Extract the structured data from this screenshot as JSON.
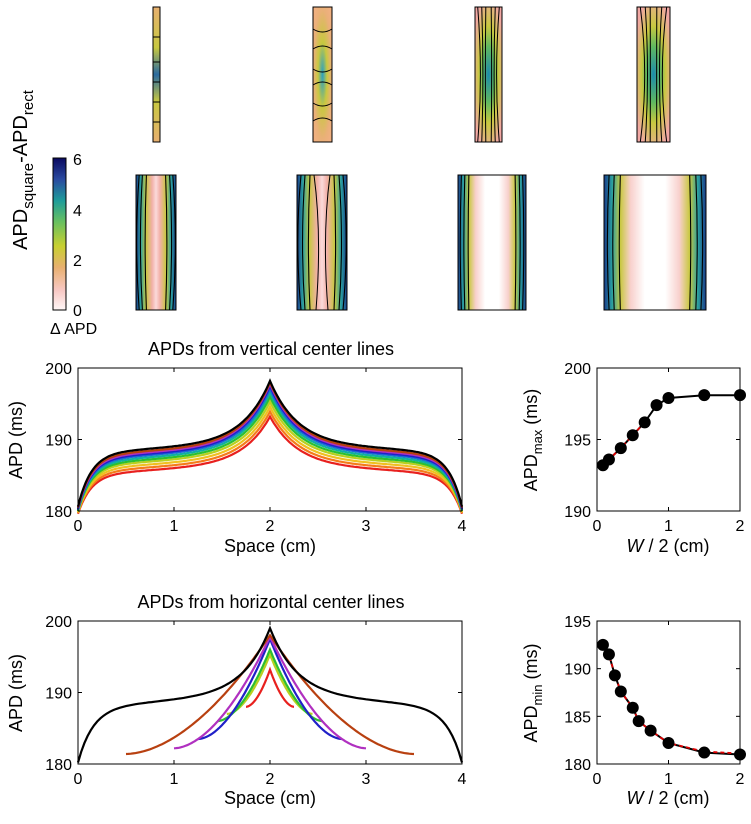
{
  "colors": {
    "colormap": [
      "#fff7f7",
      "#f4a7a4",
      "#e0c060",
      "#c8d030",
      "#1e9c9a",
      "#2a4aa0",
      "#0a0a60"
    ],
    "series": [
      "#e8201e",
      "#f47c1a",
      "#f0c020",
      "#b8d020",
      "#2cc030",
      "#10b0a0",
      "#1a6ad8",
      "#2020c8",
      "#b030c0",
      "#b84010",
      "#000000"
    ],
    "fit": "#e00000"
  },
  "heatmaps": {
    "ylabel_main": "APD",
    "ylabel_sub1": "square",
    "ylabel_mid": "-APD",
    "ylabel_sub2": "rect",
    "colorbar": {
      "ticks": [
        "6",
        "4",
        "2",
        "0"
      ],
      "label": "Δ APD"
    }
  },
  "chart_data": [
    {
      "type": "line",
      "title": "APDs from vertical center lines",
      "xlabel": "Space (cm)",
      "ylabel": "APD (ms)",
      "xlim": [
        0,
        4
      ],
      "ylim": [
        180,
        200
      ],
      "xticks": [
        "0",
        "1",
        "2",
        "3",
        "4"
      ],
      "yticks": [
        "200",
        "190",
        "180"
      ],
      "grid": false,
      "curve": {
        "start": [
          180.2,
          180.3,
          180.4,
          180.5,
          180.6,
          180.7,
          180.8,
          180.9,
          181.0,
          181.1,
          181.2
        ],
        "plateau": [
          185.8,
          186.2,
          186.6,
          187.0,
          187.3,
          187.6,
          187.9,
          188.1,
          188.3,
          188.5,
          188.8
        ],
        "peak": [
          193.2,
          193.9,
          194.6,
          195.3,
          196.0,
          196.6,
          197.1,
          197.5,
          197.8,
          198.0,
          198.2
        ]
      }
    },
    {
      "type": "scatter",
      "xlabel_italic": "W",
      "xlabel": " / 2 (cm)",
      "ylabel_main": "APD",
      "ylabel_sub": "max",
      "ylabel_unit": " (ms)",
      "xlim": [
        0,
        2
      ],
      "ylim": [
        190,
        200
      ],
      "xticks": [
        "0",
        "1",
        "2"
      ],
      "yticks": [
        "200",
        "195",
        "190"
      ],
      "x": [
        0.083,
        0.167,
        0.333,
        0.5,
        0.667,
        0.833,
        1.0,
        1.5,
        2.0
      ],
      "y": [
        193.2,
        193.6,
        194.4,
        195.3,
        196.2,
        197.4,
        197.9,
        198.1,
        198.1
      ],
      "fit_x": [
        0.083,
        0.167,
        0.333,
        0.5,
        0.667
      ],
      "fit_y": [
        193.2,
        193.6,
        194.4,
        195.3,
        196.2
      ]
    },
    {
      "type": "line",
      "title": "APDs from horizontal center lines",
      "xlabel": "Space (cm)",
      "ylabel": "APD (ms)",
      "xlim": [
        0,
        4
      ],
      "ylim": [
        180,
        200
      ],
      "xticks": [
        "0",
        "1",
        "2",
        "3",
        "4"
      ],
      "yticks": [
        "200",
        "190",
        "180"
      ],
      "grid": false,
      "curves": [
        {
          "half": 0.25,
          "start": 188.0,
          "peak": 193.2
        },
        {
          "half": 0.3,
          "start": 188.0,
          "peak": 193.9
        },
        {
          "half": 0.37,
          "start": 187.5,
          "peak": 194.6
        },
        {
          "half": 0.45,
          "start": 187.0,
          "peak": 195.3
        },
        {
          "half": 0.55,
          "start": 186.0,
          "peak": 196.0
        },
        {
          "half": 0.62,
          "start": 185.5,
          "peak": 196.6
        },
        {
          "half": 0.68,
          "start": 184.5,
          "peak": 197.1
        },
        {
          "half": 0.75,
          "start": 183.5,
          "peak": 197.5
        },
        {
          "half": 1.0,
          "start": 182.2,
          "peak": 197.8
        },
        {
          "half": 1.5,
          "start": 181.4,
          "peak": 198.0
        },
        {
          "half": 2.0,
          "start": 181.0,
          "peak": 198.2
        }
      ]
    },
    {
      "type": "scatter",
      "xlabel_italic": "W",
      "xlabel": " / 2 (cm)",
      "ylabel_main": "APD",
      "ylabel_sub": "min",
      "ylabel_unit": " (ms)",
      "xlim": [
        0,
        2
      ],
      "ylim": [
        180,
        195
      ],
      "xticks": [
        "0",
        "1",
        "2"
      ],
      "yticks": [
        "195",
        "190",
        "185",
        "180"
      ],
      "x": [
        0.083,
        0.167,
        0.25,
        0.333,
        0.5,
        0.583,
        0.75,
        1.0,
        1.5,
        2.0
      ],
      "y": [
        192.5,
        191.5,
        189.3,
        187.6,
        185.9,
        184.5,
        183.5,
        182.2,
        181.2,
        181.0
      ],
      "fit_x": [
        0.083,
        0.167,
        0.25,
        0.333,
        0.5,
        0.583,
        0.75,
        1.0,
        1.5,
        2.0
      ],
      "fit_y": [
        192.5,
        191.5,
        189.3,
        187.6,
        185.9,
        184.5,
        183.5,
        182.2,
        181.3,
        181.1
      ]
    }
  ]
}
